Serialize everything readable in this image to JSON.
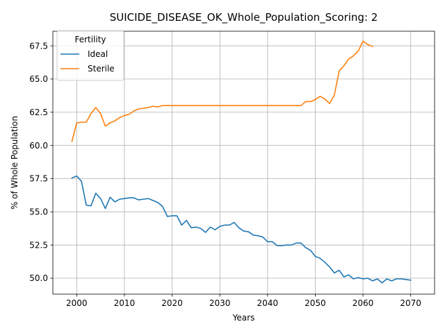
{
  "chart_data": {
    "type": "line",
    "title": "SUICIDE_DISEASE_OK_Whole_Population_Scoring: 2",
    "xlabel": "Years",
    "ylabel": "% of Whole Population",
    "xlim": [
      1995,
      2075
    ],
    "ylim": [
      48.8,
      68.6
    ],
    "xticks": [
      2000,
      2010,
      2020,
      2030,
      2040,
      2050,
      2060,
      2070
    ],
    "yticks": [
      50.0,
      52.5,
      55.0,
      57.5,
      60.0,
      62.5,
      65.0,
      67.5
    ],
    "xtick_labels": [
      "2000",
      "2010",
      "2020",
      "2030",
      "2040",
      "2050",
      "2060",
      "2070"
    ],
    "ytick_labels": [
      "50.0",
      "52.5",
      "55.0",
      "57.5",
      "60.0",
      "62.5",
      "65.0",
      "67.5"
    ],
    "grid": true,
    "legend": {
      "title": "Fertility",
      "placement": "top-left"
    },
    "series": [
      {
        "name": "Ideal",
        "color": "#1f77b4",
        "x": [
          1999,
          2000,
          2001,
          2002,
          2003,
          2004,
          2005,
          2006,
          2007,
          2008,
          2009,
          2010,
          2011,
          2012,
          2013,
          2014,
          2015,
          2016,
          2017,
          2018,
          2019,
          2020,
          2021,
          2022,
          2023,
          2024,
          2025,
          2026,
          2027,
          2028,
          2029,
          2030,
          2031,
          2032,
          2033,
          2034,
          2035,
          2036,
          2037,
          2038,
          2039,
          2040,
          2041,
          2042,
          2043,
          2044,
          2045,
          2046,
          2047,
          2048,
          2049,
          2050,
          2051,
          2052,
          2053,
          2054,
          2055,
          2056,
          2057,
          2058,
          2059,
          2060,
          2061,
          2062,
          2063,
          2064,
          2065,
          2066,
          2067,
          2068,
          2069,
          2070
        ],
        "y": [
          57.55,
          57.7,
          57.3,
          55.5,
          55.45,
          56.4,
          56.0,
          55.25,
          56.1,
          55.75,
          55.95,
          56.0,
          56.05,
          56.05,
          55.9,
          55.95,
          56.0,
          55.85,
          55.7,
          55.4,
          54.65,
          54.7,
          54.7,
          54.0,
          54.35,
          53.8,
          53.85,
          53.75,
          53.45,
          53.85,
          53.65,
          53.9,
          54.0,
          54.0,
          54.2,
          53.8,
          53.55,
          53.5,
          53.25,
          53.2,
          53.1,
          52.75,
          52.75,
          52.45,
          52.45,
          52.5,
          52.5,
          52.65,
          52.65,
          52.3,
          52.1,
          51.65,
          51.5,
          51.2,
          50.85,
          50.4,
          50.6,
          50.1,
          50.25,
          49.95,
          50.05,
          49.95,
          50.0,
          49.8,
          49.95,
          49.65,
          49.95,
          49.8,
          49.95,
          49.95,
          49.9,
          49.85
        ]
      },
      {
        "name": "Sterile",
        "color": "#ff7f0e",
        "x": [
          1999,
          2000,
          2001,
          2002,
          2003,
          2004,
          2005,
          2006,
          2007,
          2008,
          2009,
          2010,
          2011,
          2012,
          2013,
          2014,
          2015,
          2016,
          2017,
          2018,
          2019,
          2020,
          2021,
          2022,
          2023,
          2024,
          2025,
          2026,
          2027,
          2028,
          2029,
          2030,
          2031,
          2032,
          2033,
          2034,
          2035,
          2036,
          2037,
          2038,
          2039,
          2040,
          2041,
          2042,
          2043,
          2044,
          2045,
          2046,
          2047,
          2048,
          2049,
          2050,
          2051,
          2052,
          2053,
          2054,
          2055,
          2056,
          2057,
          2058,
          2059,
          2060,
          2061,
          2062
        ],
        "y": [
          60.3,
          61.7,
          61.75,
          61.75,
          62.4,
          62.85,
          62.4,
          61.45,
          61.7,
          61.85,
          62.1,
          62.25,
          62.35,
          62.6,
          62.75,
          62.8,
          62.85,
          62.95,
          62.9,
          63.0,
          63.0,
          63.0,
          63.0,
          63.0,
          63.0,
          63.0,
          63.0,
          63.0,
          63.0,
          63.0,
          63.0,
          63.0,
          63.0,
          63.0,
          63.0,
          63.0,
          63.0,
          63.0,
          63.0,
          63.0,
          63.0,
          63.0,
          63.0,
          63.0,
          63.0,
          63.0,
          63.0,
          63.0,
          63.0,
          63.3,
          63.3,
          63.45,
          63.7,
          63.5,
          63.15,
          63.8,
          65.6,
          66.0,
          66.5,
          66.75,
          67.1,
          67.85,
          67.6,
          67.45
        ]
      }
    ]
  }
}
